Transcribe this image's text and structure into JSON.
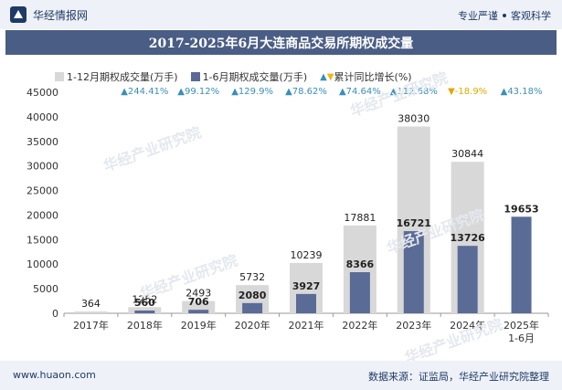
{
  "header": {
    "brand_name": "华经情报网",
    "tagline_left": "专业严谨",
    "tagline_right": "客观科学"
  },
  "title": "2017-2025年6月大连商品交易所期权成交量",
  "legend": {
    "series_full": "1-12月期权成交量(万手)",
    "series_half": "1-6月期权成交量(万手)",
    "series_growth": "累计同比增长(%)"
  },
  "watermark": "华经产业研究院",
  "footer": {
    "left": "www.huaon.com",
    "right": "数据来源：证监局，华经产业研究院整理"
  },
  "colors": {
    "full_bar": "#d8d8d8",
    "half_bar": "#5a6b96",
    "up": "#3a8fb7",
    "down": "#e0a800",
    "title_bg": "#4a5d85"
  },
  "chart_data": {
    "type": "bar",
    "categories": [
      "2017年",
      "2018年",
      "2019年",
      "2020年",
      "2021年",
      "2022年",
      "2023年",
      "2024年",
      "2025年\n1-6月"
    ],
    "y_ticks": [
      "0",
      "5000",
      "10000",
      "15000",
      "20000",
      "25000",
      "30000",
      "35000",
      "40000",
      "45000"
    ],
    "ylim": [
      0,
      45000
    ],
    "series": [
      {
        "name": "1-12月期权成交量(万手)",
        "values": [
          364,
          1252,
          2493,
          5732,
          10239,
          17881,
          38030,
          30844,
          null
        ]
      },
      {
        "name": "1-6月期权成交量(万手)",
        "values": [
          null,
          560,
          706,
          2080,
          3927,
          8366,
          16721,
          13726,
          19653
        ]
      },
      {
        "name": "累计同比增长(%)",
        "values": [
          null,
          244.41,
          99.12,
          129.9,
          78.62,
          74.64,
          112.68,
          -18.9,
          43.18
        ]
      }
    ],
    "growth_labels": [
      "",
      "244.41%",
      "99.12%",
      "129.9%",
      "78.62%",
      "74.64%",
      "112.68%",
      "-18.9%",
      "43.18%"
    ],
    "full_labels": [
      "364",
      "1252",
      "2493",
      "5732",
      "10239",
      "17881",
      "38030",
      "30844",
      ""
    ],
    "half_labels": [
      "",
      "560",
      "706",
      "2080",
      "3927",
      "8366",
      "16721",
      "13726",
      "19653"
    ],
    "legend_position": "top"
  }
}
